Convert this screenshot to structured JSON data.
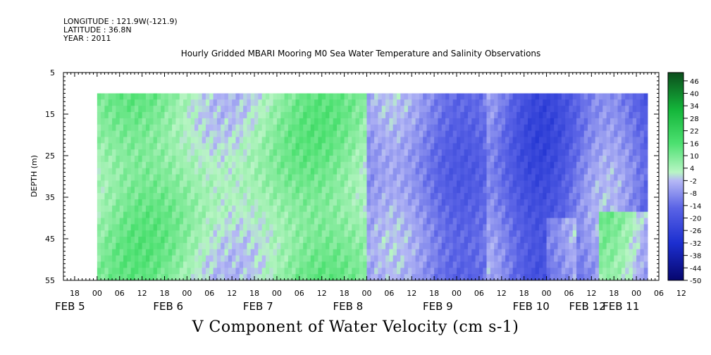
{
  "header": {
    "longitude": "LONGITUDE : 121.9W(-121.9)",
    "latitude": "LATITUDE : 36.8N",
    "year": "YEAR : 2011"
  },
  "chart_data": {
    "type": "heatmap",
    "title": "Hourly Gridded MBARI Mooring M0 Sea Water Temperature and Salinity Observations",
    "xlabel": "V Component of Water Velocity (cm s-1)",
    "ylabel": "DEPTH (m)",
    "y_axis": {
      "range": [
        5,
        55
      ],
      "inverted": true,
      "ticks": [
        5,
        15,
        25,
        35,
        45,
        55
      ],
      "data_range": [
        10,
        55
      ]
    },
    "x_axis": {
      "range_hours": [
        -9,
        150
      ],
      "hour_labels": [
        "18",
        "00",
        "06",
        "12",
        "18",
        "00",
        "06",
        "12",
        "18",
        "00",
        "06",
        "12",
        "18",
        "00",
        "06",
        "12",
        "18",
        "00",
        "06",
        "12",
        "18",
        "00",
        "06",
        "12",
        "18",
        "00",
        "06",
        "12"
      ],
      "date_labels": [
        "FEB 5",
        "FEB 6",
        "FEB 7",
        "FEB 8",
        "FEB 9",
        "FEB 10",
        "FEB 11",
        "FEB 12"
      ]
    },
    "colorbar": {
      "ticks": [
        46,
        40,
        34,
        28,
        22,
        16,
        10,
        4,
        -2,
        -8,
        -14,
        -20,
        -26,
        -32,
        -38,
        -44,
        -50
      ],
      "min": -50,
      "max": 50
    },
    "colors": {
      "negative_mid": "#7f85e8",
      "negative_strong": "#1f3fd6",
      "positive_mid": "#5fe07f",
      "positive_strong": "#12c83a"
    }
  }
}
